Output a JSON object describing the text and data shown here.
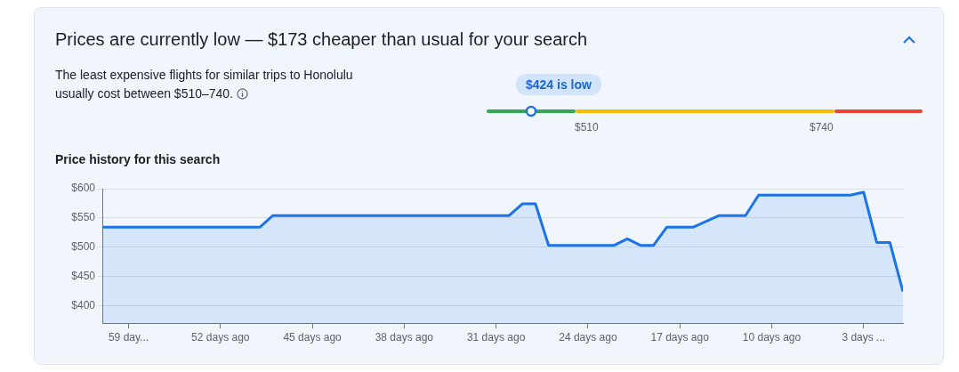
{
  "chart_data": {
    "type": "area",
    "title": "Price history for this search",
    "annotations": [
      "Prices are currently low — $173 cheaper than usual for your search",
      "The least expensive flights for similar trips to Honolulu usually cost between $510–740.",
      "$424 is low",
      "$510",
      "$740"
    ],
    "x": [
      -61,
      -49,
      -48,
      -30,
      -29,
      -28,
      -27,
      -22,
      -21,
      -20,
      -19,
      -18,
      -16,
      -14,
      -12,
      -11,
      -4,
      -3,
      -2,
      -1,
      0
    ],
    "series": [
      {
        "color": "#1a73e8",
        "values": [
          534,
          534,
          554,
          554,
          574,
          574,
          503,
          503,
          514,
          503,
          503,
          534,
          534,
          554,
          554,
          589,
          589,
          594,
          508,
          508,
          424
        ]
      }
    ],
    "xlim": [
      -61,
      0
    ],
    "xticks": [
      {
        "value": -59,
        "label": "59 day..."
      },
      {
        "value": -52,
        "label": "52 days ago"
      },
      {
        "value": -45,
        "label": "45 days ago"
      },
      {
        "value": -38,
        "label": "38 days ago"
      },
      {
        "value": -31,
        "label": "31 days ago"
      },
      {
        "value": -24,
        "label": "24 days ago"
      },
      {
        "value": -17,
        "label": "17 days ago"
      },
      {
        "value": -10,
        "label": "10 days ago"
      },
      {
        "value": -3,
        "label": "3 days ..."
      }
    ],
    "ylim": [
      370,
      600
    ],
    "yticks": [
      {
        "value": 400,
        "label": "$400"
      },
      {
        "value": 450,
        "label": "$450"
      },
      {
        "value": 500,
        "label": "$500"
      },
      {
        "value": 550,
        "label": "$550"
      },
      {
        "value": 600,
        "label": "$600"
      }
    ],
    "grid": "y",
    "legend": false,
    "marker": "none",
    "line_style": "solid"
  }
}
